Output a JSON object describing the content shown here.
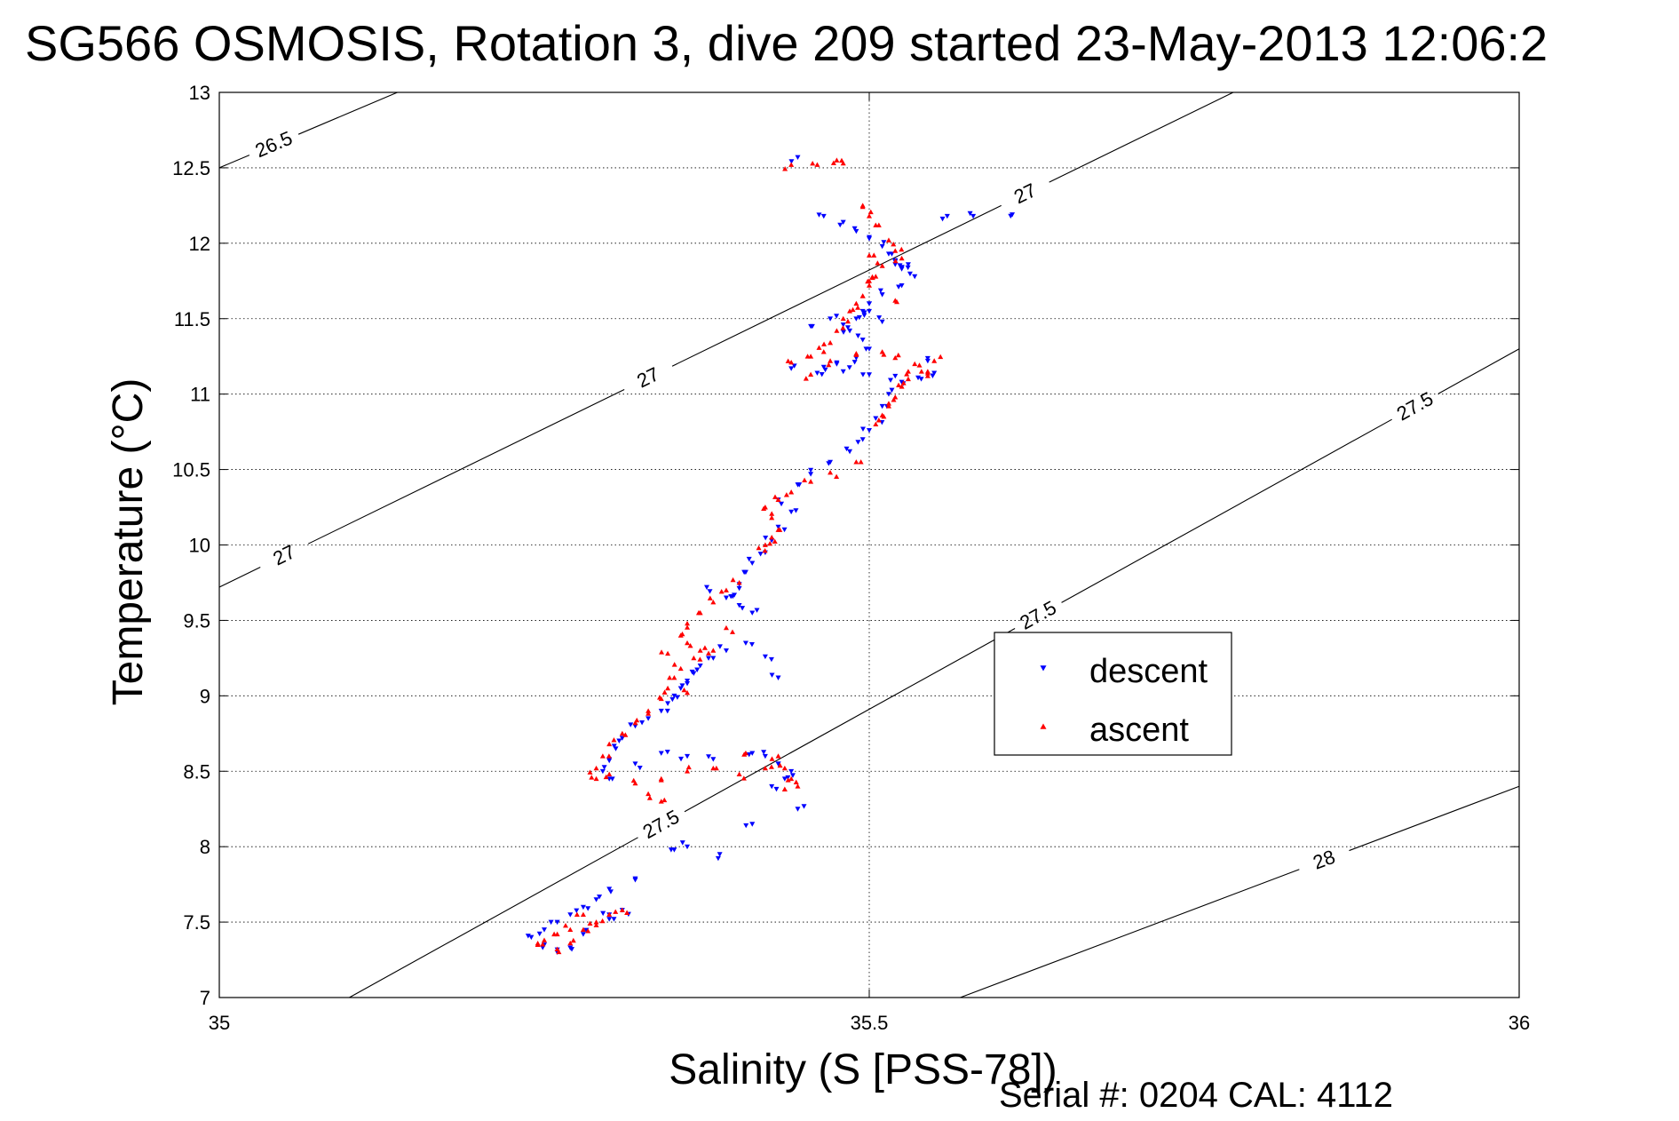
{
  "chart_data": {
    "type": "scatter",
    "title": "SG566 OSMOSIS, Rotation 3, dive 209 started 23-May-2013 12:06:2",
    "xlabel": "Salinity (S [PSS-78])",
    "ylabel": "Temperature (°C)",
    "xlim": [
      35,
      36
    ],
    "ylim": [
      7,
      13
    ],
    "x_ticks": [
      "35",
      "35.5",
      "36"
    ],
    "y_ticks": [
      "7",
      "7.5",
      "8",
      "8.5",
      "9",
      "9.5",
      "10",
      "10.5",
      "11",
      "11.5",
      "12",
      "12.5",
      "13"
    ],
    "grid": true,
    "legend_position": "center-right",
    "footer": "Serial #: 0204  CAL: 4112",
    "density_contours": [
      {
        "label": "26.5",
        "points": [
          [
            35.0,
            12.5
          ],
          [
            35.137,
            13.0
          ]
        ],
        "labels_at": [
          [
            35.042,
            12.64
          ]
        ]
      },
      {
        "label": "27",
        "points": [
          [
            35.0,
            9.72
          ],
          [
            35.78,
            13.0
          ]
        ],
        "labels_at": [
          [
            35.05,
            9.94
          ],
          [
            35.33,
            11.17
          ],
          [
            35.62,
            12.34
          ]
        ]
      },
      {
        "label": "27.5",
        "points": [
          [
            35.1,
            7.0
          ],
          [
            36.0,
            11.3
          ]
        ],
        "labels_at": [
          [
            35.34,
            8.27
          ],
          [
            35.63,
            9.64
          ],
          [
            35.92,
            11.0
          ]
        ]
      },
      {
        "label": "28",
        "points": [
          [
            35.57,
            7.0
          ],
          [
            36.0,
            8.4
          ]
        ],
        "labels_at": [
          [
            35.85,
            8.05
          ]
        ]
      }
    ],
    "series": [
      {
        "name": "descent",
        "color": "#0000ff",
        "marker": "triangle-down",
        "points": [
          [
            35.445,
            12.57
          ],
          [
            35.465,
            12.18
          ],
          [
            35.48,
            12.14
          ],
          [
            35.49,
            12.08
          ],
          [
            35.5,
            12.04
          ],
          [
            35.51,
            11.98
          ],
          [
            35.515,
            11.93
          ],
          [
            35.52,
            11.88
          ],
          [
            35.525,
            11.83
          ],
          [
            35.53,
            11.86
          ],
          [
            35.535,
            11.78
          ],
          [
            35.525,
            11.72
          ],
          [
            35.51,
            11.66
          ],
          [
            35.5,
            11.6
          ],
          [
            35.495,
            11.55
          ],
          [
            35.49,
            11.5
          ],
          [
            35.48,
            11.46
          ],
          [
            35.47,
            11.5
          ],
          [
            35.485,
            11.42
          ],
          [
            35.495,
            11.36
          ],
          [
            35.5,
            11.3
          ],
          [
            35.49,
            11.24
          ],
          [
            35.475,
            11.2
          ],
          [
            35.465,
            11.18
          ],
          [
            35.44,
            11.17
          ],
          [
            35.46,
            11.14
          ],
          [
            35.48,
            11.15
          ],
          [
            35.5,
            11.13
          ],
          [
            35.52,
            11.12
          ],
          [
            35.54,
            11.1
          ],
          [
            35.55,
            11.14
          ],
          [
            35.545,
            11.22
          ],
          [
            35.525,
            11.08
          ],
          [
            35.515,
            11.0
          ],
          [
            35.51,
            10.92
          ],
          [
            35.505,
            10.84
          ],
          [
            35.5,
            10.76
          ],
          [
            35.495,
            10.7
          ],
          [
            35.485,
            10.62
          ],
          [
            35.47,
            10.55
          ],
          [
            35.455,
            10.47
          ],
          [
            35.445,
            10.4
          ],
          [
            35.43,
            10.3
          ],
          [
            35.44,
            10.22
          ],
          [
            35.43,
            10.12
          ],
          [
            35.425,
            10.03
          ],
          [
            35.42,
            9.95
          ],
          [
            35.41,
            9.88
          ],
          [
            35.405,
            9.82
          ],
          [
            35.4,
            9.74
          ],
          [
            35.395,
            9.66
          ],
          [
            35.4,
            9.6
          ],
          [
            35.41,
            9.55
          ],
          [
            35.405,
            9.35
          ],
          [
            35.39,
            9.3
          ],
          [
            35.38,
            9.25
          ],
          [
            35.37,
            9.2
          ],
          [
            35.365,
            9.15
          ],
          [
            35.36,
            9.1
          ],
          [
            35.355,
            9.05
          ],
          [
            35.35,
            9.0
          ],
          [
            35.345,
            8.95
          ],
          [
            35.34,
            8.9
          ],
          [
            35.33,
            8.85
          ],
          [
            35.32,
            8.8
          ],
          [
            35.31,
            8.72
          ],
          [
            35.305,
            8.65
          ],
          [
            35.3,
            8.58
          ],
          [
            35.295,
            8.5
          ],
          [
            35.3,
            8.45
          ],
          [
            35.32,
            8.55
          ],
          [
            35.34,
            8.62
          ],
          [
            35.36,
            8.6
          ],
          [
            35.38,
            8.58
          ],
          [
            35.41,
            8.62
          ],
          [
            35.42,
            8.6
          ],
          [
            35.43,
            8.55
          ],
          [
            35.44,
            8.5
          ],
          [
            35.435,
            8.45
          ],
          [
            35.425,
            8.4
          ],
          [
            35.445,
            8.25
          ],
          [
            35.41,
            8.15
          ],
          [
            35.36,
            8.0
          ],
          [
            35.35,
            7.98
          ],
          [
            35.385,
            7.95
          ],
          [
            35.32,
            7.78
          ],
          [
            35.3,
            7.72
          ],
          [
            35.29,
            7.65
          ],
          [
            35.28,
            7.6
          ],
          [
            35.27,
            7.55
          ],
          [
            35.26,
            7.5
          ],
          [
            35.25,
            7.45
          ],
          [
            35.24,
            7.4
          ],
          [
            35.25,
            7.35
          ],
          [
            35.26,
            7.3
          ],
          [
            35.27,
            7.33
          ],
          [
            35.28,
            7.42
          ],
          [
            35.3,
            7.52
          ],
          [
            35.31,
            7.58
          ],
          [
            35.3,
            7.55
          ],
          [
            35.56,
            12.18
          ],
          [
            35.58,
            12.18
          ],
          [
            35.61,
            12.19
          ],
          [
            35.52,
            11.86
          ],
          [
            35.455,
            11.45
          ],
          [
            35.375,
            9.72
          ],
          [
            35.39,
            9.65
          ],
          [
            35.42,
            9.26
          ],
          [
            35.43,
            9.12
          ],
          [
            35.5,
            11.55
          ],
          [
            35.51,
            11.48
          ]
        ]
      },
      {
        "name": "ascent",
        "color": "#ff0000",
        "marker": "triangle-up",
        "points": [
          [
            35.44,
            12.52
          ],
          [
            35.46,
            12.52
          ],
          [
            35.475,
            12.55
          ],
          [
            35.48,
            12.53
          ],
          [
            35.495,
            12.25
          ],
          [
            35.5,
            12.18
          ],
          [
            35.505,
            12.12
          ],
          [
            35.515,
            12.02
          ],
          [
            35.52,
            11.95
          ],
          [
            35.525,
            11.9
          ],
          [
            35.51,
            11.85
          ],
          [
            35.505,
            11.78
          ],
          [
            35.5,
            11.72
          ],
          [
            35.495,
            11.65
          ],
          [
            35.49,
            11.6
          ],
          [
            35.485,
            11.55
          ],
          [
            35.48,
            11.5
          ],
          [
            35.475,
            11.42
          ],
          [
            35.47,
            11.34
          ],
          [
            35.465,
            11.28
          ],
          [
            35.455,
            11.25
          ],
          [
            35.47,
            11.22
          ],
          [
            35.49,
            11.26
          ],
          [
            35.51,
            11.28
          ],
          [
            35.52,
            11.24
          ],
          [
            35.535,
            11.2
          ],
          [
            35.55,
            11.22
          ],
          [
            35.545,
            11.15
          ],
          [
            35.53,
            11.1
          ],
          [
            35.525,
            11.05
          ],
          [
            35.52,
            10.98
          ],
          [
            35.515,
            10.92
          ],
          [
            35.51,
            10.86
          ],
          [
            35.505,
            10.8
          ],
          [
            35.49,
            10.55
          ],
          [
            35.47,
            10.48
          ],
          [
            35.455,
            10.42
          ],
          [
            35.44,
            10.35
          ],
          [
            35.43,
            10.3
          ],
          [
            35.42,
            10.25
          ],
          [
            35.425,
            10.18
          ],
          [
            35.43,
            10.1
          ],
          [
            35.425,
            10.05
          ],
          [
            35.42,
            10.0
          ],
          [
            35.415,
            9.98
          ],
          [
            35.4,
            9.75
          ],
          [
            35.39,
            9.7
          ],
          [
            35.38,
            9.62
          ],
          [
            35.37,
            9.55
          ],
          [
            35.36,
            9.48
          ],
          [
            35.355,
            9.4
          ],
          [
            35.36,
            9.35
          ],
          [
            35.37,
            9.3
          ],
          [
            35.365,
            9.25
          ],
          [
            35.355,
            9.18
          ],
          [
            35.35,
            9.12
          ],
          [
            35.345,
            9.05
          ],
          [
            35.34,
            8.98
          ],
          [
            35.33,
            8.9
          ],
          [
            35.32,
            8.82
          ],
          [
            35.31,
            8.75
          ],
          [
            35.3,
            8.68
          ],
          [
            35.295,
            8.6
          ],
          [
            35.29,
            8.52
          ],
          [
            35.29,
            8.45
          ],
          [
            35.3,
            8.48
          ],
          [
            35.32,
            8.42
          ],
          [
            35.34,
            8.45
          ],
          [
            35.36,
            8.5
          ],
          [
            35.38,
            8.52
          ],
          [
            35.4,
            8.48
          ],
          [
            35.42,
            8.52
          ],
          [
            35.43,
            8.6
          ],
          [
            35.435,
            8.52
          ],
          [
            35.44,
            8.45
          ],
          [
            35.445,
            8.4
          ],
          [
            35.435,
            8.38
          ],
          [
            35.33,
            8.35
          ],
          [
            35.34,
            8.3
          ],
          [
            35.31,
            7.58
          ],
          [
            35.3,
            7.55
          ],
          [
            35.29,
            7.5
          ],
          [
            35.27,
            7.45
          ],
          [
            35.26,
            7.42
          ],
          [
            35.25,
            7.38
          ],
          [
            35.245,
            7.35
          ],
          [
            35.26,
            7.32
          ],
          [
            35.27,
            7.36
          ],
          [
            35.28,
            7.45
          ],
          [
            35.29,
            7.48
          ],
          [
            35.28,
            7.55
          ],
          [
            35.455,
            11.13
          ],
          [
            35.44,
            11.21
          ],
          [
            35.53,
            11.15
          ],
          [
            35.545,
            11.12
          ],
          [
            35.52,
            11.62
          ],
          [
            35.5,
            11.75
          ],
          [
            35.5,
            11.92
          ],
          [
            35.39,
            9.45
          ],
          [
            35.345,
            9.28
          ],
          [
            35.38,
            9.3
          ],
          [
            35.36,
            9.02
          ],
          [
            35.405,
            8.62
          ]
        ]
      }
    ]
  }
}
